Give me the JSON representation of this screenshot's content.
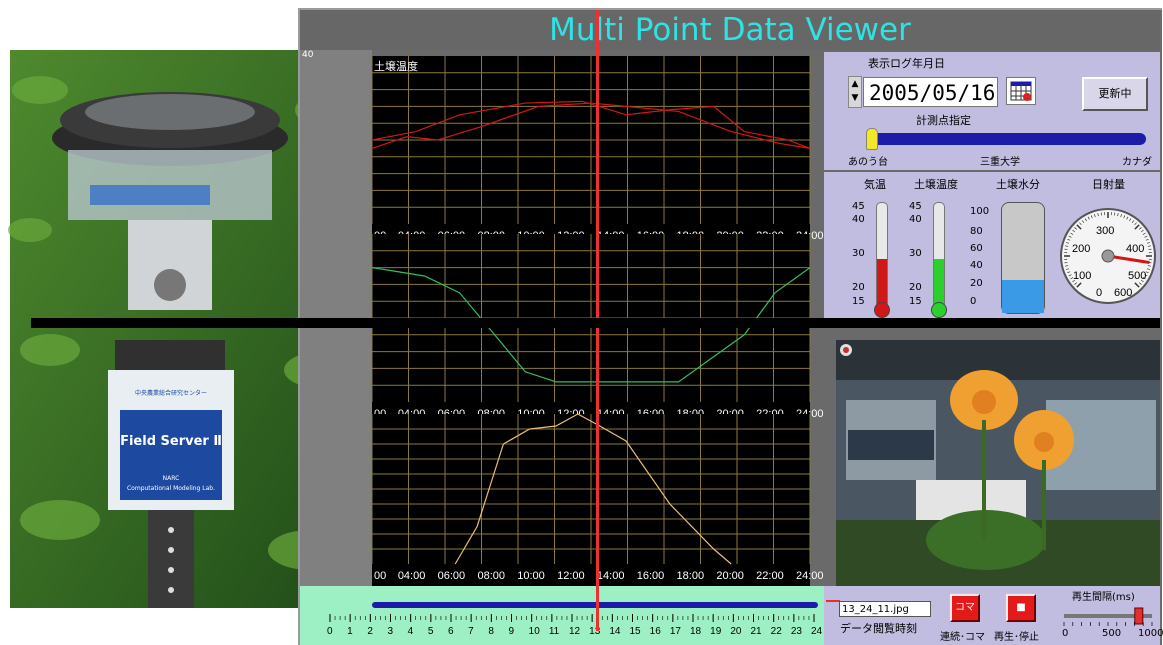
{
  "title": "Multi Point Data Viewer",
  "chart1": {
    "label": "土壌温度",
    "xticks": [
      "00",
      "04:00",
      "06:00",
      "08:00",
      "10:00",
      "12:00",
      "14:00",
      "16:00",
      "18:00",
      "20:00",
      "22:00",
      "24:00"
    ]
  },
  "chart2": {
    "xticks": [
      "00",
      "04:00",
      "06:00",
      "08:00",
      "10:00",
      "12:00",
      "14:00",
      "16:00",
      "18:00",
      "20:00",
      "22:00",
      "24:00"
    ]
  },
  "chart3": {
    "xticks": [
      "00",
      "04:00",
      "06:00",
      "08:00",
      "10:00",
      "12:00",
      "14:00",
      "16:00",
      "18:00",
      "20:00",
      "22:00",
      "24:00"
    ]
  },
  "left_tick_top": "40",
  "date_label": "表示ログ年月日",
  "date_value": "2005/05/16",
  "update_button": "更新中",
  "point_label": "計測点指定",
  "points": [
    "あのう台",
    "三重大学",
    "カナダ"
  ],
  "gauges": {
    "temp": {
      "label": "気温",
      "ticks": [
        "45",
        "40",
        "30",
        "20",
        "15"
      ],
      "level": 0.45
    },
    "soil_temp": {
      "label": "土壌温度",
      "ticks": [
        "45",
        "40",
        "30",
        "20",
        "15"
      ],
      "level": 0.45
    },
    "soil_water": {
      "label": "土壌水分",
      "ticks": [
        "100",
        "80",
        "60",
        "40",
        "20",
        "0"
      ],
      "level": 0.3
    },
    "solar": {
      "label": "日射量",
      "ticks": [
        "200",
        "300",
        "400",
        "100",
        "500",
        "0",
        "600"
      ],
      "value": 520
    }
  },
  "timeline_ticks": [
    "0",
    "1",
    "2",
    "3",
    "4",
    "5",
    "6",
    "7",
    "8",
    "9",
    "10",
    "11",
    "12",
    "13",
    "14",
    "15",
    "16",
    "17",
    "18",
    "19",
    "20",
    "21",
    "22",
    "23",
    "24"
  ],
  "filename": "13_24_11.jpg",
  "data_time_label": "データ閲覧時刻",
  "koma_button": "コマ",
  "stop_symbol": "■",
  "continuous_label": "連続･コマ",
  "play_stop_label": "再生･停止",
  "interval_label": "再生間隔(ms)",
  "interval_ticks": [
    "0",
    "500",
    "1000"
  ],
  "interval_value": 850,
  "photo_sign": {
    "line1": "Field Server Ⅱ",
    "line2": "NARC",
    "line3": "Computational Modeling Lab.",
    "top": "中央農業総合研究センター"
  },
  "colors": {
    "accent": "#2de3e3",
    "cursor": "#ef3030",
    "panel": "#c0bde0",
    "timeline": "#9cf0c4"
  }
}
